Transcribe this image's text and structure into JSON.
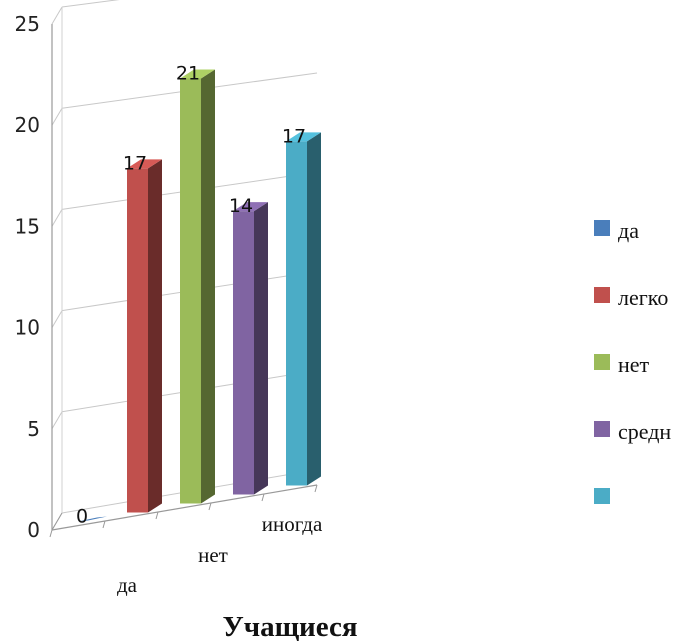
{
  "chart_data": {
    "type": "bar",
    "title": "",
    "xlabel": "Учащиеся",
    "ylabel": "",
    "ylim": [
      0,
      25
    ],
    "yticks": [
      0,
      5,
      10,
      15,
      20,
      25
    ],
    "categories": [
      "да",
      "",
      "нет",
      "",
      "иногда"
    ],
    "values": [
      0,
      17,
      21,
      14,
      17
    ],
    "data_labels": [
      "0",
      "17",
      "21",
      "14",
      "17"
    ],
    "legend": [
      "да",
      "легко",
      "нет",
      "средн",
      ""
    ],
    "legend_position": "right",
    "grid": true,
    "style": "3d-column",
    "colors": [
      "#4a7ebb",
      "#c0504d",
      "#9bbb59",
      "#8064a2",
      "#4bacc6"
    ]
  }
}
